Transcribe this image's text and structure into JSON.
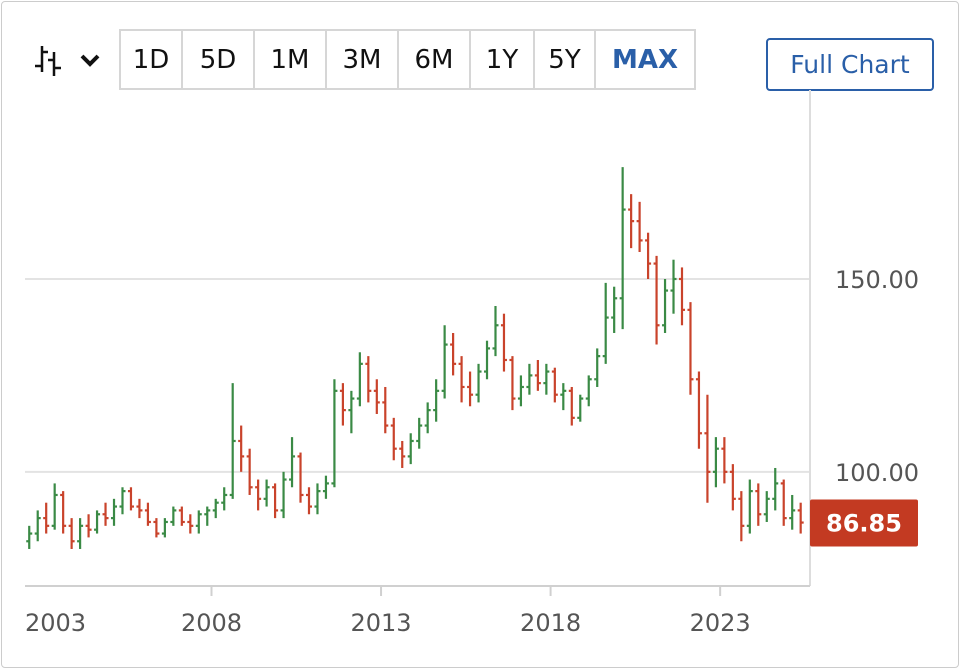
{
  "toolbar": {
    "chart_type_icon": "ohlc-bars-icon",
    "chart_type_dropdown_icon": "chevron-down-icon",
    "ranges": [
      {
        "label": "1D",
        "active": false
      },
      {
        "label": "5D",
        "active": false
      },
      {
        "label": "1M",
        "active": false
      },
      {
        "label": "3M",
        "active": false
      },
      {
        "label": "6M",
        "active": false
      },
      {
        "label": "1Y",
        "active": false
      },
      {
        "label": "5Y",
        "active": false
      },
      {
        "label": "MAX",
        "active": true
      }
    ],
    "full_chart_label": "Full Chart"
  },
  "colors": {
    "up": "#3a8a45",
    "down": "#c9432b",
    "accent": "#2a5fa8",
    "last_price_badge": "#c33a22",
    "grid": "#e3e3e3"
  },
  "chart_data": {
    "type": "ohlc",
    "title": "",
    "xlabel": "",
    "ylabel": "",
    "ylim": [
      70.4,
      199
    ],
    "xlim": [
      2002.5,
      2025.65
    ],
    "grid": true,
    "y_ticks": [
      {
        "value": 100,
        "label": "100.00"
      },
      {
        "value": 150,
        "label": "150.00"
      }
    ],
    "x_ticks": [
      {
        "value": 2003,
        "label": "2003"
      },
      {
        "value": 2008,
        "label": "2008"
      },
      {
        "value": 2013,
        "label": "2013"
      },
      {
        "value": 2018,
        "label": "2018"
      },
      {
        "value": 2023,
        "label": "2023"
      }
    ],
    "last_price": {
      "value": 86.85,
      "label": "86.85"
    },
    "bars_columns": [
      "period",
      "open",
      "high",
      "low",
      "close"
    ],
    "bars": [
      [
        "2002-Q3",
        82,
        86,
        80,
        84
      ],
      [
        "2002-Q4",
        84,
        90,
        82,
        88
      ],
      [
        "2003-Q1",
        88,
        92,
        84,
        86
      ],
      [
        "2003-Q2",
        86,
        97,
        85,
        94
      ],
      [
        "2003-Q3",
        94,
        95,
        84,
        86
      ],
      [
        "2003-Q4",
        86,
        88,
        80,
        82
      ],
      [
        "2004-Q1",
        82,
        88,
        80,
        86
      ],
      [
        "2004-Q2",
        86,
        89,
        83,
        85
      ],
      [
        "2004-Q3",
        85,
        90,
        84,
        89
      ],
      [
        "2004-Q4",
        89,
        92,
        86,
        88
      ],
      [
        "2005-Q1",
        88,
        93,
        86,
        91
      ],
      [
        "2005-Q2",
        91,
        96,
        89,
        95
      ],
      [
        "2005-Q3",
        95,
        96,
        90,
        91
      ],
      [
        "2005-Q4",
        91,
        93,
        88,
        90
      ],
      [
        "2006-Q1",
        90,
        92,
        86,
        87
      ],
      [
        "2006-Q2",
        87,
        88,
        83,
        84
      ],
      [
        "2006-Q3",
        84,
        88,
        83,
        87
      ],
      [
        "2006-Q4",
        87,
        91,
        86,
        90
      ],
      [
        "2007-Q1",
        90,
        91,
        86,
        87
      ],
      [
        "2007-Q2",
        87,
        89,
        84,
        86
      ],
      [
        "2007-Q3",
        86,
        90,
        84,
        89
      ],
      [
        "2007-Q4",
        89,
        91,
        86,
        90
      ],
      [
        "2008-Q1",
        90,
        93,
        88,
        92
      ],
      [
        "2008-Q2",
        92,
        96,
        90,
        94
      ],
      [
        "2008-Q3",
        94,
        123,
        93,
        108
      ],
      [
        "2008-Q4",
        108,
        112,
        100,
        104
      ],
      [
        "2009-Q1",
        104,
        106,
        94,
        96
      ],
      [
        "2009-Q2",
        96,
        98,
        90,
        93
      ],
      [
        "2009-Q3",
        93,
        98,
        91,
        96
      ],
      [
        "2009-Q4",
        96,
        97,
        88,
        90
      ],
      [
        "2010-Q1",
        90,
        100,
        88,
        98
      ],
      [
        "2010-Q2",
        98,
        109,
        96,
        104
      ],
      [
        "2010-Q3",
        104,
        105,
        92,
        94
      ],
      [
        "2010-Q4",
        94,
        96,
        89,
        91
      ],
      [
        "2011-Q1",
        91,
        97,
        89,
        95
      ],
      [
        "2011-Q2",
        95,
        99,
        93,
        97
      ],
      [
        "2011-Q3",
        97,
        124,
        96,
        121
      ],
      [
        "2011-Q4",
        121,
        123,
        112,
        116
      ],
      [
        "2012-Q1",
        116,
        121,
        110,
        119
      ],
      [
        "2012-Q2",
        119,
        131,
        117,
        128
      ],
      [
        "2012-Q3",
        128,
        130,
        118,
        121
      ],
      [
        "2012-Q4",
        121,
        124,
        115,
        118
      ],
      [
        "2013-Q1",
        118,
        122,
        110,
        112
      ],
      [
        "2013-Q2",
        112,
        114,
        103,
        106
      ],
      [
        "2013-Q3",
        106,
        108,
        101,
        104
      ],
      [
        "2013-Q4",
        104,
        110,
        102,
        108
      ],
      [
        "2014-Q1",
        108,
        114,
        106,
        112
      ],
      [
        "2014-Q2",
        112,
        118,
        110,
        116
      ],
      [
        "2014-Q3",
        116,
        124,
        113,
        121
      ],
      [
        "2014-Q4",
        121,
        138,
        119,
        133
      ],
      [
        "2015-Q1",
        133,
        136,
        125,
        128
      ],
      [
        "2015-Q2",
        128,
        130,
        118,
        122
      ],
      [
        "2015-Q3",
        122,
        126,
        117,
        120
      ],
      [
        "2015-Q4",
        120,
        128,
        118,
        126
      ],
      [
        "2016-Q1",
        126,
        134,
        124,
        132
      ],
      [
        "2016-Q2",
        132,
        143,
        130,
        138
      ],
      [
        "2016-Q3",
        138,
        141,
        126,
        129
      ],
      [
        "2016-Q4",
        129,
        130,
        116,
        119
      ],
      [
        "2017-Q1",
        119,
        125,
        117,
        122
      ],
      [
        "2017-Q2",
        122,
        128,
        120,
        125
      ],
      [
        "2017-Q3",
        125,
        129,
        121,
        123
      ],
      [
        "2017-Q4",
        123,
        128,
        120,
        126
      ],
      [
        "2018-Q1",
        126,
        127,
        118,
        120
      ],
      [
        "2018-Q2",
        120,
        123,
        116,
        121
      ],
      [
        "2018-Q3",
        121,
        122,
        112,
        114
      ],
      [
        "2018-Q4",
        114,
        120,
        113,
        119
      ],
      [
        "2019-Q1",
        119,
        125,
        117,
        124
      ],
      [
        "2019-Q2",
        124,
        132,
        122,
        130
      ],
      [
        "2019-Q3",
        130,
        149,
        128,
        140
      ],
      [
        "2019-Q4",
        140,
        148,
        136,
        145
      ],
      [
        "2020-Q1",
        145,
        179,
        137,
        168
      ],
      [
        "2020-Q2",
        168,
        172,
        158,
        165
      ],
      [
        "2020-Q3",
        165,
        170,
        157,
        160
      ],
      [
        "2020-Q4",
        160,
        162,
        150,
        154
      ],
      [
        "2021-Q1",
        154,
        156,
        133,
        138
      ],
      [
        "2021-Q2",
        138,
        150,
        136,
        147
      ],
      [
        "2021-Q3",
        147,
        155,
        141,
        150
      ],
      [
        "2021-Q4",
        150,
        153,
        138,
        142
      ],
      [
        "2022-Q1",
        142,
        144,
        120,
        124
      ],
      [
        "2022-Q2",
        124,
        126,
        106,
        110
      ],
      [
        "2022-Q3",
        110,
        120,
        92,
        100
      ],
      [
        "2022-Q4",
        100,
        109,
        96,
        106
      ],
      [
        "2023-Q1",
        106,
        109,
        97,
        100
      ],
      [
        "2023-Q2",
        100,
        102,
        90,
        93
      ],
      [
        "2023-Q3",
        93,
        95,
        82,
        86
      ],
      [
        "2023-Q4",
        86,
        98,
        84,
        95
      ],
      [
        "2024-Q1",
        95,
        97,
        86,
        89
      ],
      [
        "2024-Q2",
        89,
        95,
        87,
        93
      ],
      [
        "2024-Q3",
        93,
        101,
        90,
        97
      ],
      [
        "2024-Q4",
        97,
        98,
        86,
        88
      ],
      [
        "2025-Q1",
        88,
        94,
        85,
        90
      ],
      [
        "2025-Q2",
        90,
        92,
        84,
        86.85
      ]
    ]
  }
}
